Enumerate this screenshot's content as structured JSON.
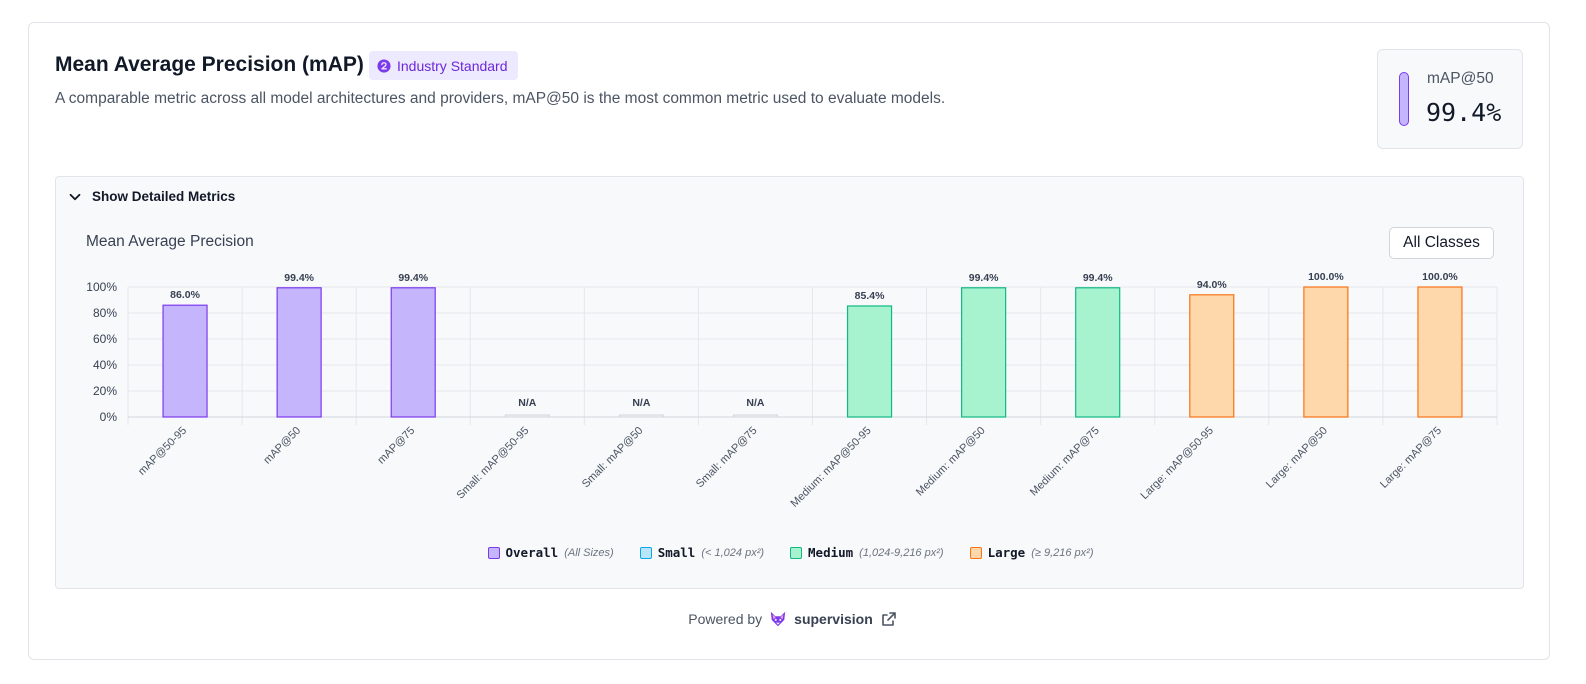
{
  "header": {
    "title": "Mean Average Precision (mAP)",
    "badge": "Industry Standard",
    "subtitle": "A comparable metric across all model architectures and providers, mAP@50 is the most common metric used to evaluate models."
  },
  "metric": {
    "label": "mAP@50",
    "value": "99.4%"
  },
  "details": {
    "toggle_label": "Show Detailed Metrics",
    "chart_title": "Mean Average Precision",
    "class_button": "All Classes"
  },
  "legend": [
    {
      "name": "Overall",
      "desc": "(All Sizes)",
      "fill": "#c4b5fd",
      "stroke": "#7c3aed"
    },
    {
      "name": "Small",
      "desc": "(< 1,024 px²)",
      "fill": "#bae6fd",
      "stroke": "#0ea5e9"
    },
    {
      "name": "Medium",
      "desc": "(1,024-9,216 px²)",
      "fill": "#a7f3d0",
      "stroke": "#10b981"
    },
    {
      "name": "Large",
      "desc": "(≥ 9,216 px²)",
      "fill": "#fed7aa",
      "stroke": "#f97316"
    }
  ],
  "chart_data": {
    "type": "bar",
    "title": "Mean Average Precision",
    "ylim": [
      0,
      100
    ],
    "yticks": [
      "0%",
      "20%",
      "40%",
      "60%",
      "80%",
      "100%"
    ],
    "categories": [
      "mAP@50-95",
      "mAP@50",
      "mAP@75",
      "Small: mAP@50-95",
      "Small: mAP@50",
      "Small: mAP@75",
      "Medium: mAP@50-95",
      "Medium: mAP@50",
      "Medium: mAP@75",
      "Large: mAP@50-95",
      "Large: mAP@50",
      "Large: mAP@75"
    ],
    "values": [
      86.0,
      99.4,
      99.4,
      null,
      null,
      null,
      85.4,
      99.4,
      99.4,
      94.0,
      100.0,
      100.0
    ],
    "labels": [
      "86.0%",
      "99.4%",
      "99.4%",
      "N/A",
      "N/A",
      "N/A",
      "85.4%",
      "99.4%",
      "99.4%",
      "94.0%",
      "100.0%",
      "100.0%"
    ],
    "groups": [
      "Overall",
      "Overall",
      "Overall",
      "Small",
      "Small",
      "Small",
      "Medium",
      "Medium",
      "Medium",
      "Large",
      "Large",
      "Large"
    ]
  },
  "footer": {
    "powered_by": "Powered by",
    "brand": "supervision"
  }
}
